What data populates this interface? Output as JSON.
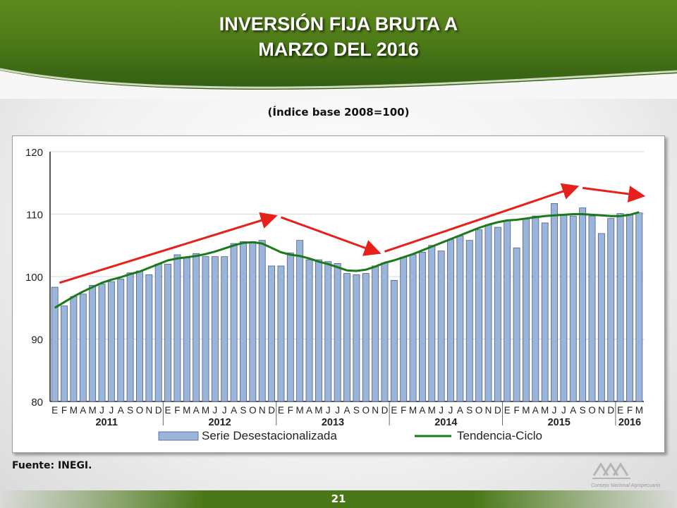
{
  "header": {
    "title_line1": "INVERSIÓN FIJA BRUTA A",
    "title_line2": "MARZO DEL 2016",
    "subtitle": "(Índice base 2008=100)"
  },
  "footer": {
    "source": "Fuente: INEGI.",
    "page_number": "21",
    "logo_text": "Consejo Nacional Agropecuario"
  },
  "colors": {
    "bar_fill": "#9bb4da",
    "bar_stroke": "#4b5f8c",
    "trend_line": "#1a7a1a",
    "arrow": "#e8201c",
    "header_green": "#4c7a18"
  },
  "chart_data": {
    "type": "bar",
    "ylim": [
      80,
      120
    ],
    "yticks": [
      80,
      90,
      100,
      110,
      120
    ],
    "month_labels": [
      "E",
      "F",
      "M",
      "A",
      "M",
      "J",
      "J",
      "A",
      "S",
      "O",
      "N",
      "D",
      "E",
      "F",
      "M",
      "A",
      "M",
      "J",
      "J",
      "A",
      "S",
      "O",
      "N",
      "D",
      "E",
      "F",
      "M",
      "A",
      "M",
      "J",
      "J",
      "A",
      "S",
      "O",
      "N",
      "D",
      "E",
      "F",
      "M",
      "A",
      "M",
      "J",
      "J",
      "A",
      "S",
      "O",
      "N",
      "D",
      "E",
      "F",
      "M",
      "A",
      "M",
      "J",
      "J",
      "A",
      "S",
      "O",
      "N",
      "D",
      "E",
      "F",
      "M"
    ],
    "years": [
      {
        "label": "2011",
        "start": 0,
        "count": 12
      },
      {
        "label": "2012",
        "start": 12,
        "count": 12
      },
      {
        "label": "2013",
        "start": 24,
        "count": 12
      },
      {
        "label": "2014",
        "start": 36,
        "count": 12
      },
      {
        "label": "2015",
        "start": 48,
        "count": 12
      },
      {
        "label": "2016",
        "start": 60,
        "count": 3
      }
    ],
    "series": [
      {
        "name": "Serie Desestacionalizada",
        "type": "bar",
        "values": [
          98.3,
          95.3,
          96.8,
          97.2,
          98.6,
          98.8,
          99.2,
          99.6,
          100.6,
          100.9,
          100.3,
          102.0,
          102.0,
          103.5,
          103.0,
          103.7,
          103.2,
          103.2,
          103.2,
          105.3,
          105.6,
          105.6,
          105.8,
          101.7,
          101.7,
          103.8,
          105.8,
          102.7,
          102.7,
          102.4,
          102.1,
          100.5,
          100.3,
          100.5,
          101.7,
          102.2,
          99.4,
          103.1,
          103.5,
          103.9,
          105.0,
          104.1,
          105.9,
          106.5,
          105.8,
          107.5,
          108.3,
          107.9,
          109.0,
          104.6,
          109.3,
          109.7,
          108.6,
          111.7,
          109.8,
          109.7,
          111.0,
          109.7,
          106.9,
          109.3,
          110.1,
          110.0,
          110.2
        ]
      },
      {
        "name": "Tendencia-Ciclo",
        "type": "line",
        "values": [
          95.0,
          95.9,
          96.8,
          97.6,
          98.3,
          99.0,
          99.5,
          99.9,
          100.4,
          100.8,
          101.4,
          102.0,
          102.6,
          102.9,
          103.1,
          103.3,
          103.6,
          104.0,
          104.5,
          105.0,
          105.4,
          105.5,
          105.3,
          104.6,
          103.9,
          103.5,
          103.3,
          102.9,
          102.4,
          102.0,
          101.5,
          101.0,
          100.9,
          101.1,
          101.6,
          102.2,
          102.6,
          103.1,
          103.6,
          104.2,
          104.8,
          105.4,
          106.0,
          106.6,
          107.2,
          107.8,
          108.3,
          108.7,
          109.0,
          109.1,
          109.3,
          109.5,
          109.7,
          109.8,
          109.9,
          110.0,
          110.0,
          109.9,
          109.8,
          109.7,
          109.7,
          109.9,
          110.3
        ]
      }
    ],
    "arrows": [
      {
        "from": [
          1,
          99.0
        ],
        "to": [
          23.5,
          109.5
        ]
      },
      {
        "from": [
          24.5,
          109.5
        ],
        "to": [
          34.5,
          104.0
        ]
      },
      {
        "from": [
          35.5,
          104.0
        ],
        "to": [
          55.5,
          114.2
        ]
      },
      {
        "from": [
          56.5,
          114.2
        ],
        "to": [
          62.5,
          113.0
        ]
      }
    ]
  }
}
